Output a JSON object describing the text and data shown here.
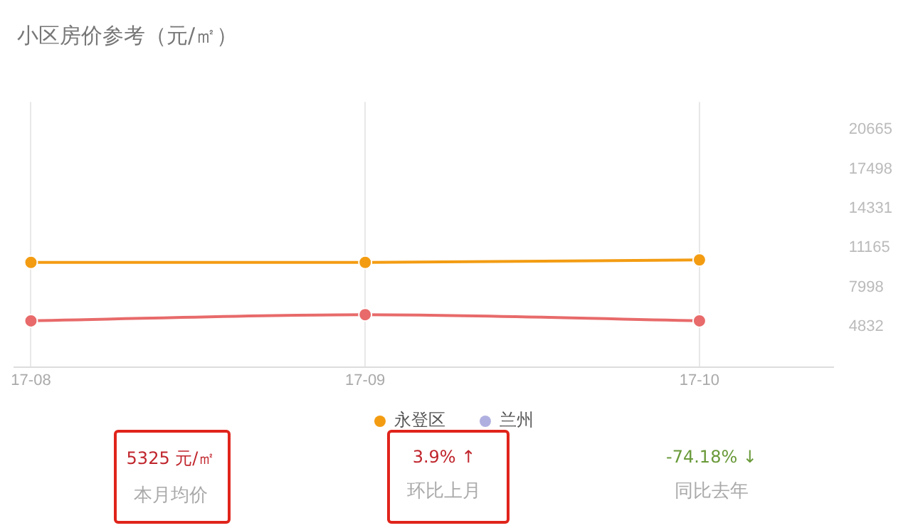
{
  "chart_data": {
    "type": "line",
    "title": "小区房价参考（元/㎡）",
    "categories": [
      "17-08",
      "17-09",
      "17-10"
    ],
    "ylim": [
      1600,
      22900
    ],
    "yticks": [
      4832,
      7998,
      11165,
      14331,
      17498,
      20665
    ],
    "series": [
      {
        "color": "#e86a6a",
        "values": [
          5300,
          5800,
          5300
        ]
      },
      {
        "name": "永登区",
        "color": "#f39c12",
        "values": [
          10000,
          10000,
          10200
        ]
      },
      {
        "name": "兰州",
        "color": "#b0b0e0",
        "values": [
          null,
          null,
          null
        ]
      }
    ],
    "grid": "x",
    "legend": "bottom",
    "marker": "circle",
    "annotations": [
      "5325 元/㎡",
      "本月均价",
      "3.9% ↑",
      "环比上月",
      "-74.18% ↓",
      "同比去年"
    ]
  }
}
